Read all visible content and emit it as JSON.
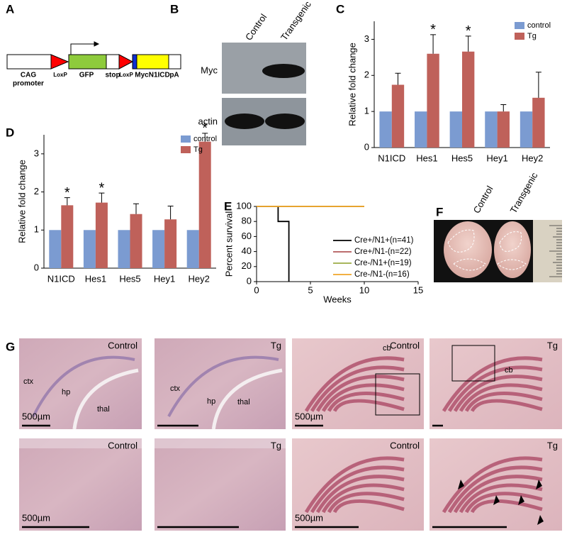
{
  "panel_labels": [
    "A",
    "B",
    "C",
    "D",
    "E",
    "F",
    "G"
  ],
  "diagram": {
    "parts": [
      "CAG",
      "promoter",
      "LoxP",
      "GFP",
      "stop",
      "LoxP",
      "MycN1ICD",
      "pA"
    ]
  },
  "blot": {
    "lanes": [
      "Control",
      "Transgenic"
    ],
    "rows": [
      "Myc",
      "actin"
    ]
  },
  "photo": {
    "lanes": [
      "Control",
      "Transgenic"
    ]
  },
  "histology": {
    "images": [
      {
        "caption": "Control",
        "labels": [
          "ctx",
          "hp",
          "thal"
        ],
        "scale": "500µm"
      },
      {
        "caption": "Tg",
        "labels": [
          "ctx",
          "hp",
          "thal"
        ]
      },
      {
        "caption": "Control",
        "labels": [
          "cb"
        ],
        "scale": "500µm"
      },
      {
        "caption": "Tg",
        "labels": [
          "cb"
        ]
      },
      {
        "caption": "Control",
        "scale": "500µm"
      },
      {
        "caption": "Tg"
      },
      {
        "caption": "Control",
        "scale": "500µm"
      },
      {
        "caption": "Tg"
      }
    ]
  },
  "chart_data": [
    {
      "type": "bar",
      "ylabel": "Relative fold change",
      "categories": [
        "N1ICD",
        "Hes1",
        "Hes5",
        "Hey1",
        "Hey2"
      ],
      "series": [
        {
          "name": "control",
          "color": "#7b9bd1",
          "values": [
            1,
            1,
            1,
            1,
            1
          ]
        },
        {
          "name": "Tg",
          "color": "#bf615a",
          "values": [
            1.74,
            2.6,
            2.66,
            1.0,
            1.38
          ],
          "errors": [
            0.32,
            0.53,
            0.43,
            0.19,
            0.71
          ]
        }
      ],
      "ylim": [
        0,
        3.5
      ],
      "yticks": [
        0,
        1,
        2,
        3
      ],
      "legend": "upper right",
      "annotations": [
        {
          "text": "*",
          "x": "Hes1"
        },
        {
          "text": "*",
          "x": "Hes5"
        }
      ]
    },
    {
      "type": "bar",
      "ylabel": "Relative fold change",
      "categories": [
        "N1ICD",
        "Hes1",
        "Hes5",
        "Hey1",
        "Hey2"
      ],
      "series": [
        {
          "name": "control",
          "color": "#7b9bd1",
          "values": [
            1,
            1,
            1,
            1,
            1
          ]
        },
        {
          "name": "Tg",
          "color": "#bf615a",
          "values": [
            1.65,
            1.72,
            1.42,
            1.28,
            3.32
          ],
          "errors": [
            0.2,
            0.25,
            0.27,
            0.35,
            0.22
          ]
        }
      ],
      "ylim": [
        0,
        3.5
      ],
      "yticks": [
        0,
        1,
        2,
        3
      ],
      "legend": "upper right",
      "annotations": [
        {
          "text": "*",
          "x": "N1ICD"
        },
        {
          "text": "*",
          "x": "Hes1"
        },
        {
          "text": "*",
          "x": "Hey2"
        }
      ]
    },
    {
      "type": "line",
      "ylabel": "Percent survival",
      "xlabel": "Weeks",
      "xlim": [
        0,
        15
      ],
      "xticks": [
        0,
        5,
        10,
        15
      ],
      "ylim": [
        0,
        100
      ],
      "yticks": [
        0,
        20,
        40,
        60,
        80,
        100
      ],
      "legend": "lower right",
      "series": [
        {
          "name": "Cre+/N1+(n=41)",
          "color": "#000000",
          "x": [
            0,
            2,
            2,
            3,
            3
          ],
          "values": [
            100,
            100,
            80,
            80,
            0
          ]
        },
        {
          "name": "Cre+/N1-(n=22)",
          "color": "#b2585a",
          "x": [
            0,
            10
          ],
          "values": [
            100,
            100
          ]
        },
        {
          "name": "Cre-/N1+(n=19)",
          "color": "#9bab45",
          "x": [
            0,
            10
          ],
          "values": [
            100,
            100
          ]
        },
        {
          "name": "Cre-/N1-(n=16)",
          "color": "#f0a52a",
          "x": [
            0,
            10
          ],
          "values": [
            100,
            100
          ]
        }
      ]
    }
  ]
}
